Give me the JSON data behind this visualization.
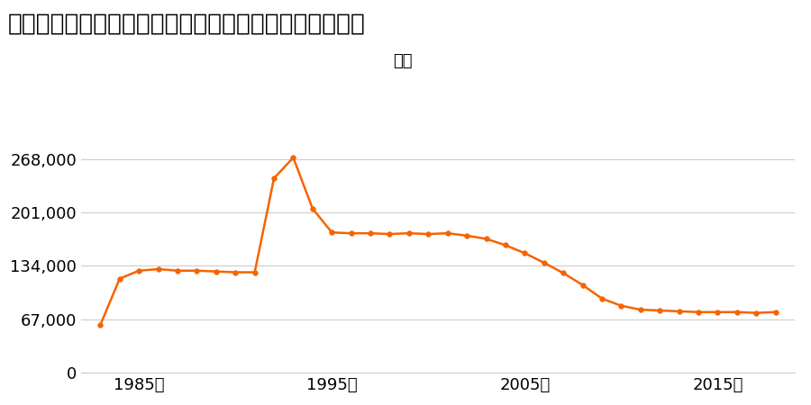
{
  "title": "兵庫県神戸市北区鈴蘭台西町５丁目４番１２の地価推移",
  "legend_label": "価格",
  "line_color": "#f56400",
  "marker_color": "#f56400",
  "background_color": "#ffffff",
  "grid_color": "#cccccc",
  "years": [
    1983,
    1984,
    1985,
    1986,
    1987,
    1988,
    1989,
    1990,
    1991,
    1992,
    1993,
    1994,
    1995,
    1996,
    1997,
    1998,
    1999,
    2000,
    2001,
    2002,
    2003,
    2004,
    2005,
    2006,
    2007,
    2008,
    2009,
    2010,
    2011,
    2012,
    2013,
    2014,
    2015,
    2016,
    2017,
    2018
  ],
  "values": [
    60000,
    118000,
    128000,
    130000,
    128000,
    128000,
    127000,
    126000,
    126000,
    244000,
    270000,
    206000,
    176000,
    175000,
    175000,
    174000,
    175000,
    174000,
    175000,
    172000,
    168000,
    160000,
    150000,
    138000,
    125000,
    110000,
    93000,
    84000,
    79000,
    78000,
    77000,
    76000,
    76000,
    76000,
    75000,
    76000
  ],
  "yticks": [
    0,
    67000,
    134000,
    201000,
    268000
  ],
  "ytick_labels": [
    "0",
    "67,000",
    "134,000",
    "201,000",
    "268,000"
  ],
  "xticks": [
    1985,
    1995,
    2005,
    2015
  ],
  "xtick_labels": [
    "1985年",
    "1995年",
    "2005年",
    "2015年"
  ],
  "ylim": [
    0,
    295000
  ],
  "xlim": [
    1982,
    2019
  ],
  "title_fontsize": 19,
  "axis_fontsize": 13,
  "legend_fontsize": 13
}
